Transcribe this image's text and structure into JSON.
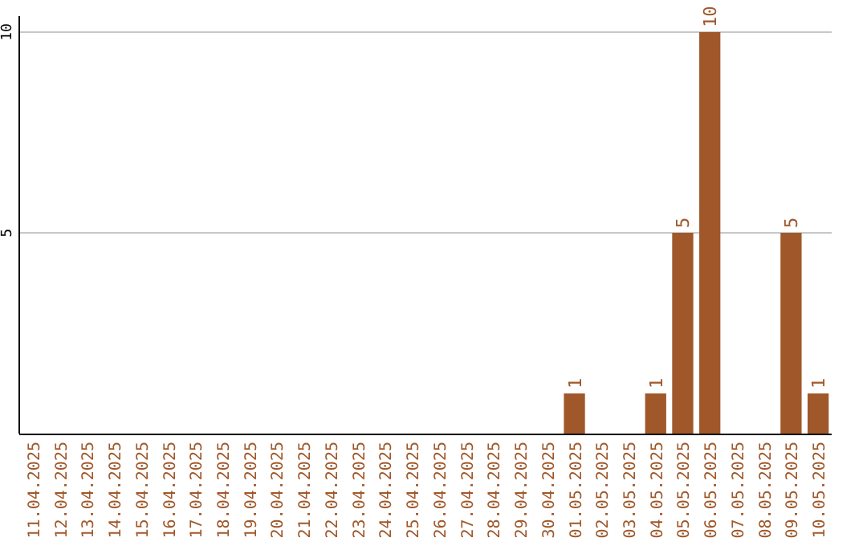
{
  "chart_data": {
    "type": "bar",
    "categories": [
      "11.04.2025",
      "12.04.2025",
      "13.04.2025",
      "14.04.2025",
      "15.04.2025",
      "16.04.2025",
      "17.04.2025",
      "18.04.2025",
      "19.04.2025",
      "20.04.2025",
      "21.04.2025",
      "22.04.2025",
      "23.04.2025",
      "24.04.2025",
      "25.04.2025",
      "26.04.2025",
      "27.04.2025",
      "28.04.2025",
      "29.04.2025",
      "30.04.2025",
      "01.05.2025",
      "02.05.2025",
      "03.05.2025",
      "04.05.2025",
      "05.05.2025",
      "06.05.2025",
      "07.05.2025",
      "08.05.2025",
      "09.05.2025",
      "10.05.2025"
    ],
    "values": [
      0,
      0,
      0,
      0,
      0,
      0,
      0,
      0,
      0,
      0,
      0,
      0,
      0,
      0,
      0,
      0,
      0,
      0,
      0,
      0,
      1,
      0,
      0,
      1,
      5,
      10,
      0,
      0,
      5,
      1
    ],
    "value_labels": [
      null,
      null,
      null,
      null,
      null,
      null,
      null,
      null,
      null,
      null,
      null,
      null,
      null,
      null,
      null,
      null,
      null,
      null,
      null,
      null,
      "1",
      null,
      null,
      "1",
      "5",
      "10",
      null,
      null,
      "5",
      "1"
    ],
    "color": "#a0582a",
    "ylim": [
      0,
      10.4
    ],
    "yticks": [
      5,
      10
    ],
    "grid": "y"
  }
}
